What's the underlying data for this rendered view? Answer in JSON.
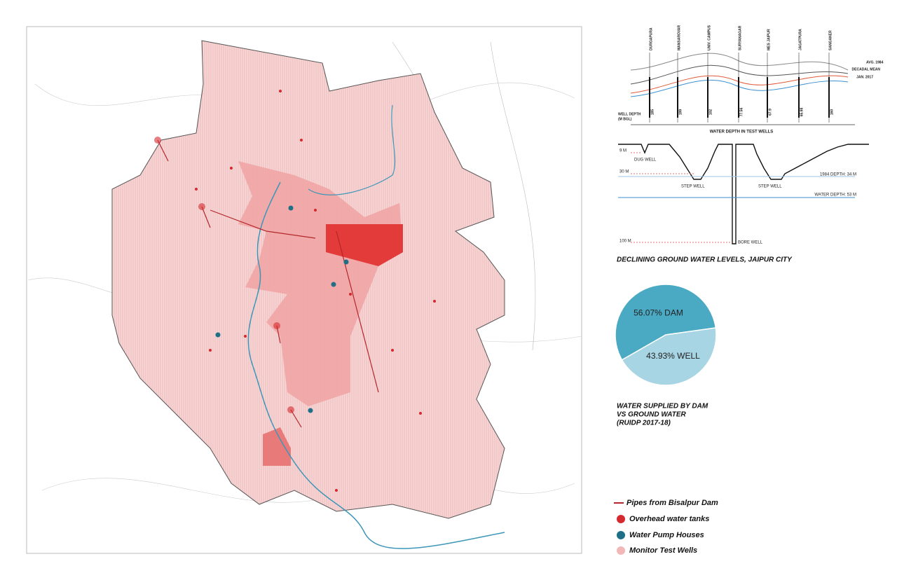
{
  "profile": {
    "stations": [
      "DURGAPURA",
      "MANSAROVAR",
      "UNIV. CAMPUS",
      "SURYANAGAR",
      "MES JAIPUR",
      "JAGATPURA",
      "SANGANER"
    ],
    "depths": [
      "185",
      "199",
      "102",
      "77.56",
      "67.9",
      "65.98",
      "160"
    ],
    "series_labels": [
      "AVG. 1984",
      "DECADAL MEAN",
      "JAN. 2017"
    ],
    "axis_label_lines": [
      "WELL DEPTH",
      "(M BGL)"
    ],
    "caption": "WATER DEPTH IN TEST WELLS"
  },
  "section": {
    "labels": [
      "9 M",
      "DUG WELL",
      "30 M",
      "STEP WELL",
      "STEP WELL",
      "1984 DEPTH: 34 M",
      "WATER DEPTH: 53 M",
      "100 M",
      "BORE WELL"
    ],
    "title": "DECLINING GROUND WATER LEVELS, JAIPUR CITY"
  },
  "chart_data": {
    "type": "pie",
    "title_lines": [
      "WATER SUPPLIED BY DAM",
      "VS  GROUND WATER",
      "(RUIDP 2017-18)"
    ],
    "values": [
      56.07,
      43.93
    ],
    "value_labels": [
      "56.07% DAM",
      "43.93% WELL"
    ],
    "colors": [
      "#4aaac4",
      "#a8d5e3"
    ]
  },
  "legend": {
    "items": [
      "Pipes from Bisalpur Dam",
      "Overhead water tanks",
      "Water Pump Houses",
      "Monitor Test Wells"
    ]
  }
}
